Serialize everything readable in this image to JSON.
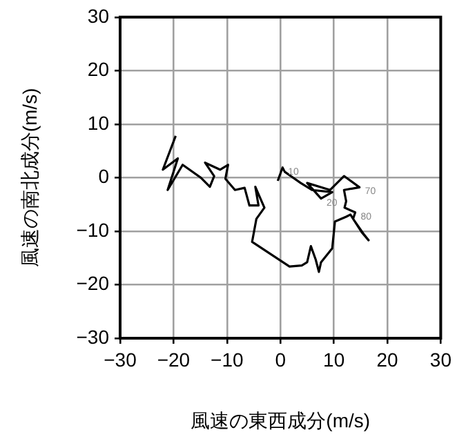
{
  "chart_data": {
    "type": "line",
    "xlabel": "風速の東西成分(m/s)",
    "ylabel": "風速の南北成分(m/s)",
    "xlim": [
      -30,
      30
    ],
    "ylim": [
      -30,
      30
    ],
    "xticks": [
      -30,
      -20,
      -10,
      0,
      10,
      20,
      30
    ],
    "yticks": [
      -30,
      -20,
      -10,
      0,
      10,
      20,
      30
    ],
    "grid": true,
    "legend": false,
    "marker": "none",
    "line_style": "solid",
    "series": [
      {
        "color": "#000000",
        "x": [
          -19.6,
          -22,
          -19.2,
          -21.1,
          -18.3,
          -14.9,
          -13.2,
          -12.4,
          -14.1,
          -11.3,
          -9.8,
          -10.3,
          -8.5,
          -6.7,
          -5.8,
          -4.1,
          -4.7,
          -3,
          -4.5,
          -5.3,
          1.7,
          4,
          5,
          5.7,
          6.6,
          7.2,
          7.6,
          9.7,
          10.2,
          12.3,
          13.1,
          15.3,
          16.5,
          15.7,
          13.6,
          14,
          12,
          12.3,
          11.9,
          14.8,
          11.9,
          9.3,
          5,
          7.6,
          9.7,
          5.9,
          3.8,
          0.8,
          0.4,
          -0.5
        ],
        "values": [
          7.8,
          1.5,
          3.6,
          -2.3,
          2.4,
          0,
          -1.7,
          0.3,
          2.8,
          1.5,
          2.4,
          -0.2,
          -2.3,
          -1.9,
          -5.2,
          -5.2,
          -1.7,
          -5.6,
          -7.7,
          -12,
          -16.6,
          -16.4,
          -15.8,
          -12.8,
          -15.3,
          -17.6,
          -15.8,
          -13.2,
          -8.2,
          -7.3,
          -6.9,
          -10.3,
          -11.7,
          -10.7,
          -7.7,
          -6.5,
          -5.6,
          -4.4,
          -2.3,
          -1.8,
          0.3,
          -2.3,
          -1,
          -3.9,
          -2.7,
          -2.3,
          -1,
          1.1,
          1.9,
          -0.6
        ]
      }
    ],
    "annotations": [
      {
        "text": "10",
        "x": 0.4,
        "y": 1.9
      },
      {
        "text": "20",
        "x": 7.6,
        "y": -3.9
      },
      {
        "text": "70",
        "x": 14.8,
        "y": -1.8
      },
      {
        "text": "80",
        "x": 14,
        "y": -6.5
      }
    ]
  }
}
